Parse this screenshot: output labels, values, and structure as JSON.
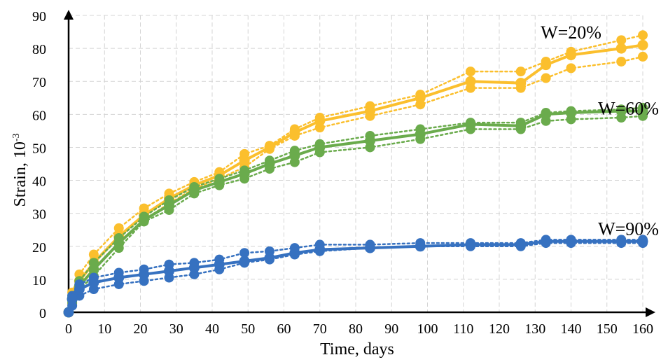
{
  "chart_data": {
    "type": "line",
    "xlabel": "Time, days",
    "ylabel_main": "Strain, 10",
    "ylabel_exp": "-3",
    "xlim": [
      0,
      160
    ],
    "ylim": [
      0,
      90
    ],
    "x_ticks": [
      0,
      10,
      20,
      30,
      40,
      50,
      60,
      70,
      80,
      90,
      100,
      110,
      120,
      130,
      140,
      150,
      160
    ],
    "y_ticks": [
      0,
      10,
      20,
      30,
      40,
      50,
      60,
      70,
      80,
      90
    ],
    "grid": true,
    "grid_style": "dashed",
    "series": [
      {
        "name": "W=20%",
        "color": "#fbbf2d",
        "x": [
          0,
          1,
          3,
          7,
          14,
          21,
          28,
          35,
          42,
          49,
          56,
          63,
          70,
          84,
          98,
          112,
          126,
          133,
          140,
          154,
          160
        ],
        "mean": [
          0,
          4,
          9.5,
          15,
          23,
          29.5,
          34.5,
          38.5,
          41.5,
          46,
          50,
          54.5,
          58,
          61,
          65,
          70,
          69.5,
          75,
          78,
          80,
          81
        ],
        "upper": [
          0,
          6,
          11.5,
          17.5,
          25.5,
          31.5,
          36,
          39.5,
          42.5,
          48,
          50.5,
          55.5,
          59,
          62.5,
          66,
          73,
          73,
          76,
          79,
          82.5,
          84
        ],
        "lower": [
          0,
          2.5,
          8,
          13,
          21,
          28,
          33,
          37.5,
          40.5,
          44,
          49.5,
          53.5,
          56,
          59.5,
          63,
          68,
          68,
          71,
          74,
          76,
          77.5
        ]
      },
      {
        "name": "W=60%",
        "color": "#6aab4c",
        "x": [
          0,
          1,
          3,
          7,
          14,
          21,
          28,
          35,
          42,
          49,
          56,
          63,
          70,
          84,
          98,
          112,
          126,
          133,
          140,
          154,
          160
        ],
        "mean": [
          0,
          4,
          8,
          13,
          21,
          28,
          32.5,
          37,
          39.5,
          42,
          45,
          47.5,
          50,
          52,
          54,
          57,
          56.5,
          60,
          60.5,
          61,
          61
        ],
        "upper": [
          0,
          5,
          9.5,
          15,
          22.5,
          29,
          34,
          38,
          40.5,
          43,
          46,
          49,
          51,
          53.5,
          55.5,
          57.5,
          57.5,
          60.5,
          61,
          61.5,
          62
        ],
        "lower": [
          0,
          3,
          7,
          11,
          19.5,
          27.5,
          31,
          36,
          38.5,
          40.5,
          43.5,
          45.5,
          48.5,
          50,
          52.5,
          55.5,
          55.5,
          58,
          58.5,
          59,
          59.5
        ]
      },
      {
        "name": "W=90%",
        "color": "#3671c0",
        "x": [
          0,
          1,
          3,
          7,
          14,
          21,
          28,
          35,
          42,
          49,
          56,
          63,
          70,
          84,
          98,
          112,
          126,
          133,
          140,
          154,
          160
        ],
        "mean": [
          0,
          4,
          7,
          9,
          10.5,
          11.5,
          12.5,
          13.5,
          14.5,
          15.5,
          16.5,
          18,
          19,
          19.5,
          20,
          20.5,
          20.5,
          21.5,
          21.5,
          21.5,
          21.5
        ],
        "upper": [
          0,
          5,
          8.5,
          10.5,
          12,
          13,
          14.5,
          15,
          16,
          18,
          18.5,
          19.5,
          20.5,
          20.5,
          21,
          21,
          21,
          22,
          22,
          22,
          22
        ],
        "lower": [
          0,
          2,
          5,
          7,
          8.5,
          9.5,
          10.5,
          11.5,
          13,
          15,
          16,
          17.5,
          18.5,
          19.5,
          20,
          20,
          20,
          21,
          21,
          21,
          21
        ]
      }
    ],
    "annotations": [
      {
        "series": "W=20%",
        "text": "W=20%",
        "at": [
          140,
          83
        ]
      },
      {
        "series": "W=60%",
        "text": "W=60%",
        "at": [
          156,
          60
        ]
      },
      {
        "series": "W=90%",
        "text": "W=90%",
        "at": [
          156,
          23.5
        ]
      }
    ]
  }
}
